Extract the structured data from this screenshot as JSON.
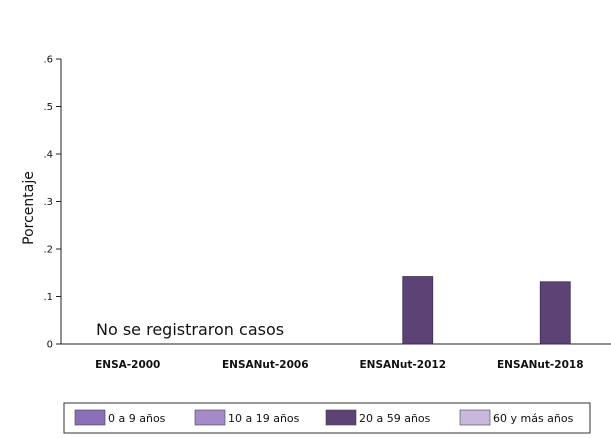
{
  "chart_data": {
    "type": "bar",
    "categories": [
      "ENSA-2000",
      "ENSANut-2006",
      "ENSANut-2012",
      "ENSANut-2018"
    ],
    "series": [
      {
        "name": "0 a 9 años",
        "color": "#8b6fb8",
        "values": [
          0,
          0,
          0,
          0
        ]
      },
      {
        "name": "10 a 19 años",
        "color": "#a58ac9",
        "values": [
          0,
          0,
          0,
          0
        ]
      },
      {
        "name": "20 a 59 años",
        "color": "#5d4275",
        "values": [
          0,
          0,
          0.142,
          0.131
        ]
      },
      {
        "name": "60 y más años",
        "color": "#c9b8de",
        "values": [
          0,
          0,
          0,
          0
        ]
      }
    ],
    "ylabel": "Porcentaje",
    "ylim": [
      0,
      0.6
    ],
    "yticks": [
      0,
      0.1,
      0.2,
      0.3,
      0.4,
      0.5,
      0.6
    ],
    "ytick_labels": [
      "0",
      ".1",
      ".2",
      ".3",
      ".4",
      ".5",
      ".6"
    ],
    "annotation": "No se registraron casos",
    "grid": false,
    "legend_position": "bottom"
  }
}
